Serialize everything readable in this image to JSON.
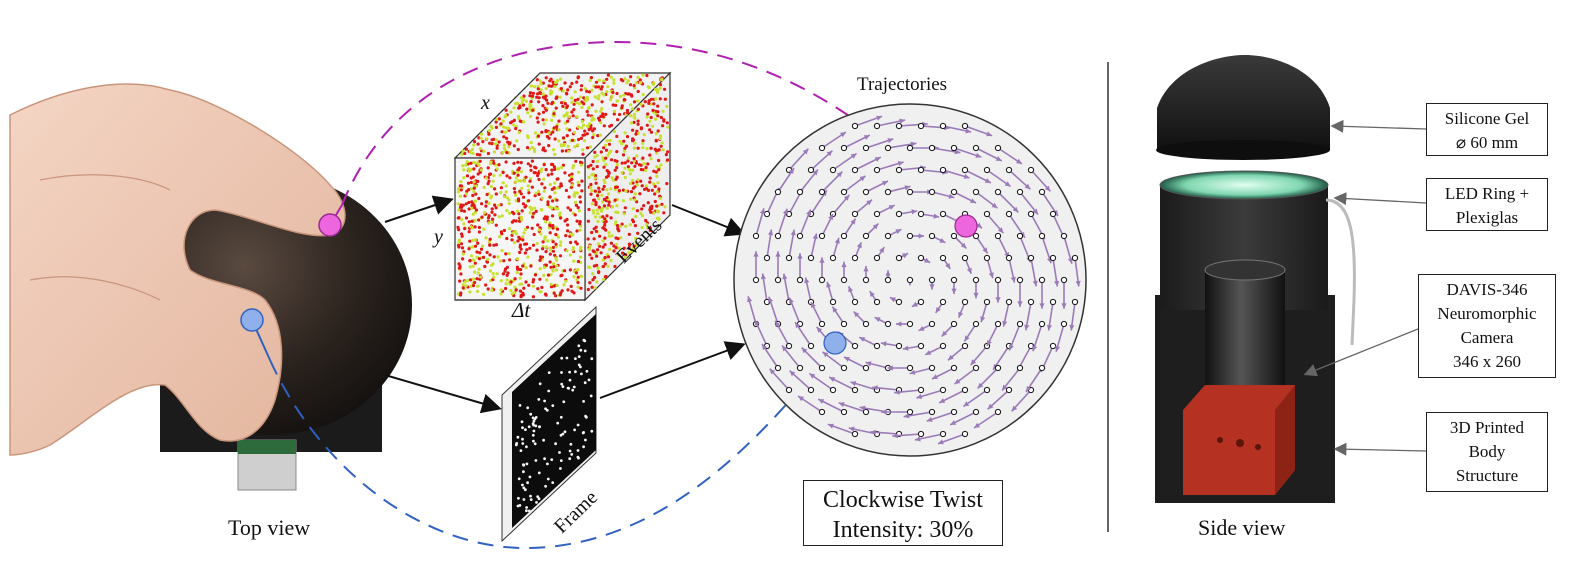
{
  "top_view_label": "Top view",
  "side_view_label": "Side view",
  "events_cube": {
    "x_axis": "x",
    "y_axis": "y",
    "dt_axis": "Δt",
    "label": "Events"
  },
  "frame_label": "Frame",
  "trajectories_title": "Trajectories",
  "twist_box": {
    "line1": "Clockwise Twist",
    "line2": "Intensity: 30%"
  },
  "component_labels": [
    {
      "lines": [
        "Silicone Gel",
        "⌀ 60 mm"
      ]
    },
    {
      "lines": [
        "LED Ring +",
        "Plexiglas"
      ]
    },
    {
      "lines": [
        "DAVIS-346",
        "Neuromorphic",
        "Camera",
        "346 x 260"
      ]
    },
    {
      "lines": [
        "3D Printed",
        "Body",
        "Structure"
      ]
    }
  ],
  "colors": {
    "magenta_marker": "#ee66dd",
    "blue_marker": "#8fb0ea",
    "magenta_dash": "#b020b0",
    "blue_dash": "#3060c0",
    "arrow": "#9b7ab8",
    "event_red": "#e01818",
    "event_yellow": "#c8e030"
  }
}
